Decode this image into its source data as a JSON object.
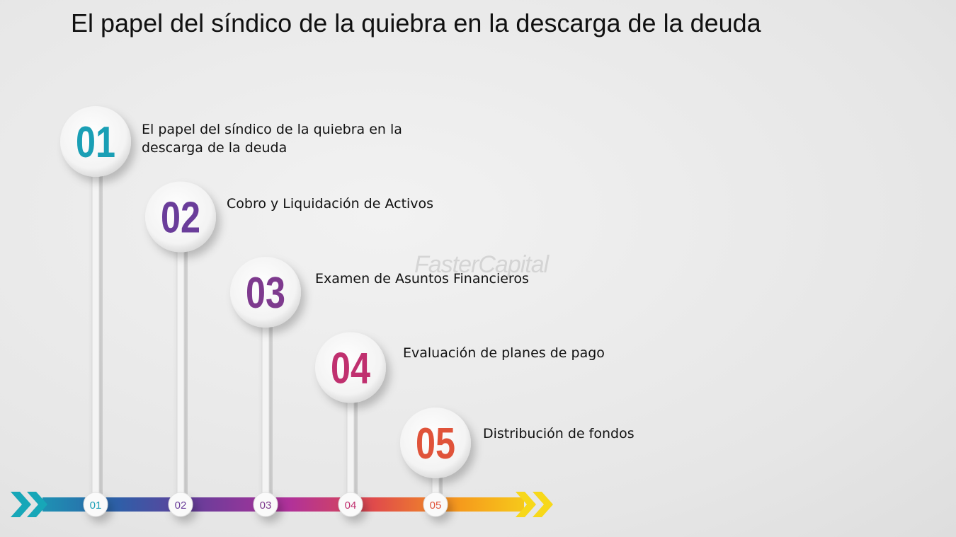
{
  "title": "El papel del síndico de la quiebra en la descarga de la deuda",
  "watermark": "FasterCapital",
  "steps": [
    {
      "number": "01",
      "label": "El papel del síndico de la quiebra en la descarga de la deuda",
      "marker": "01"
    },
    {
      "number": "02",
      "label": "Cobro y Liquidación de Activos",
      "marker": "02"
    },
    {
      "number": "03",
      "label": "Examen de Asuntos Financieros",
      "marker": "03"
    },
    {
      "number": "04",
      "label": "Evaluación de planes de pago",
      "marker": "04"
    },
    {
      "number": "05",
      "label": "Distribución de fondos",
      "marker": "05"
    }
  ]
}
